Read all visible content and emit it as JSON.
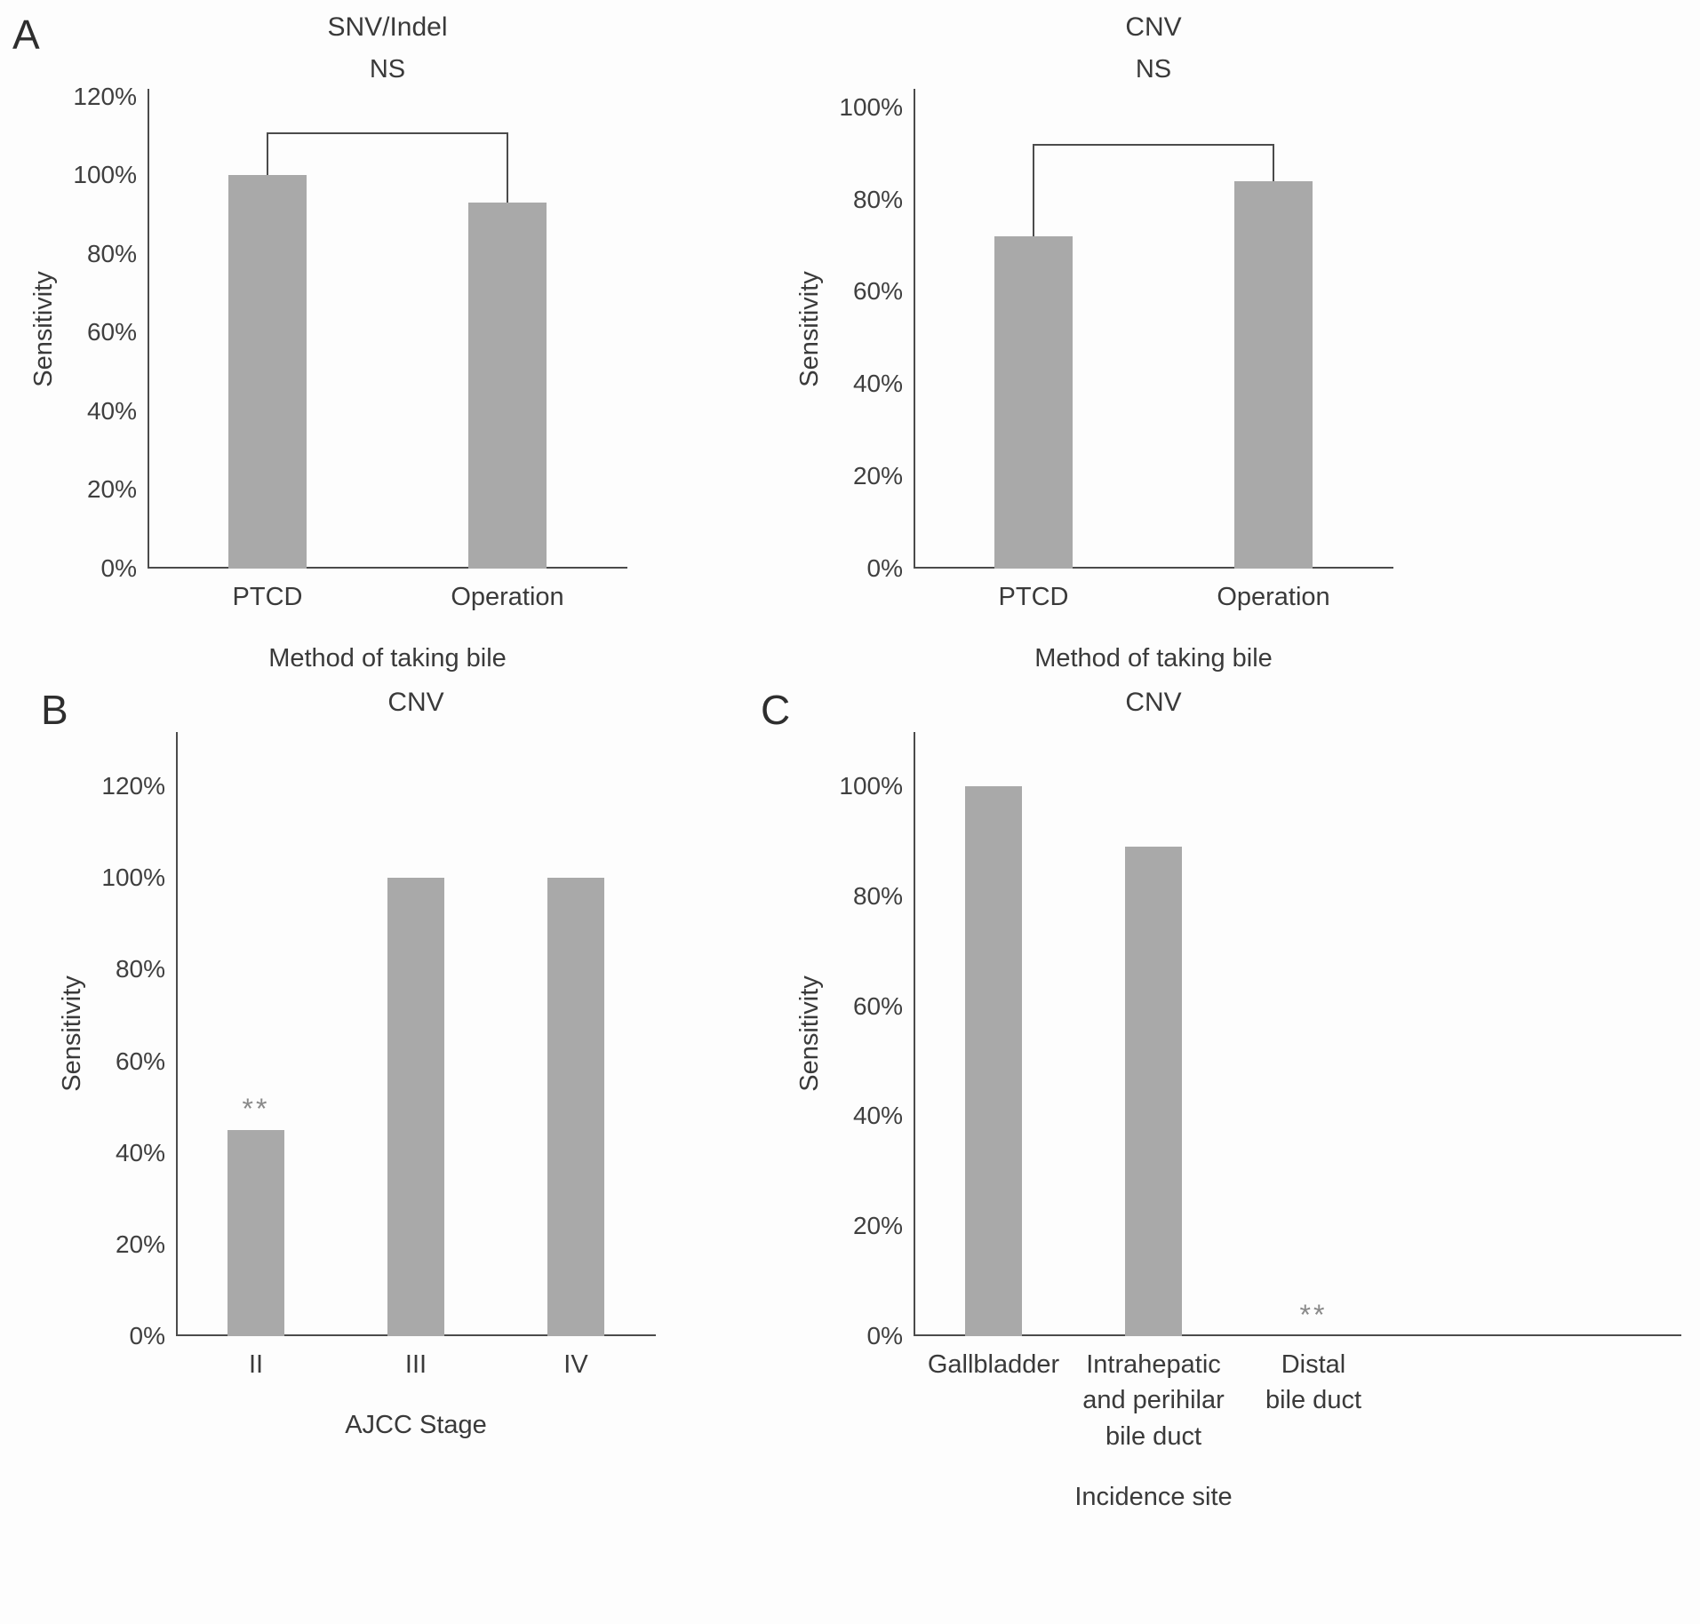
{
  "page": {
    "background": "#fdfdfd",
    "panel_labels": {
      "a": "A",
      "b": "B",
      "c": "C"
    }
  },
  "colors": {
    "bar": "#a9a9a9",
    "axis": "#4b4b4b",
    "text": "#3d3d3d",
    "significance": "#8a8a8a"
  },
  "chart_data": [
    {
      "type": "bar",
      "panel": "A",
      "title": "SNV/Indel",
      "categories": [
        "PTCD",
        "Operation"
      ],
      "values": [
        100,
        93
      ],
      "value_unit": "%",
      "xlabel": "Method of taking bile",
      "ylabel": "Sensitivity",
      "ylim": [
        0,
        120
      ],
      "ytick_values": [
        0,
        20,
        40,
        60,
        80,
        100,
        120
      ],
      "yticks": [
        "0%",
        "20%",
        "40%",
        "60%",
        "80%",
        "100%",
        "120%"
      ],
      "bracket": {
        "from": 0,
        "to": 1,
        "label": "NS",
        "y": 111
      },
      "grid": false,
      "legend": false,
      "ydraw_max": 122
    },
    {
      "type": "bar",
      "panel": "A",
      "title": "CNV",
      "categories": [
        "PTCD",
        "Operation"
      ],
      "values": [
        72,
        84
      ],
      "value_unit": "%",
      "xlabel": "Method of taking bile",
      "ylabel": "Sensitivity",
      "ylim": [
        0,
        100
      ],
      "ytick_values": [
        0,
        20,
        40,
        60,
        80,
        100
      ],
      "yticks": [
        "0%",
        "20%",
        "40%",
        "60%",
        "80%",
        "100%"
      ],
      "bracket": {
        "from": 0,
        "to": 1,
        "label": "NS",
        "y": 92
      },
      "grid": false,
      "legend": false,
      "ydraw_max": 104
    },
    {
      "type": "bar",
      "panel": "B",
      "title": "CNV",
      "categories": [
        "II",
        "III",
        "IV"
      ],
      "values": [
        45,
        100,
        100
      ],
      "value_unit": "%",
      "xlabel": "AJCC Stage",
      "ylabel": "Sensitivity",
      "ylim": [
        0,
        120
      ],
      "ytick_values": [
        0,
        20,
        40,
        60,
        80,
        100,
        120
      ],
      "yticks": [
        "0%",
        "20%",
        "40%",
        "60%",
        "80%",
        "100%",
        "120%"
      ],
      "sig_markers": [
        {
          "index": 0,
          "label": "**"
        }
      ],
      "grid": false,
      "legend": false,
      "ydraw_max": 132
    },
    {
      "type": "bar",
      "panel": "C",
      "title": "CNV",
      "categories": [
        "Gallbladder",
        "Intrahepatic and perihilar bile duct",
        "Distal bile duct"
      ],
      "category_lines": [
        [
          "Gallbladder"
        ],
        [
          "Intrahepatic",
          "and perihilar",
          "bile duct"
        ],
        [
          "Distal",
          "bile duct"
        ]
      ],
      "values": [
        100,
        89,
        0
      ],
      "value_unit": "%",
      "xlabel": "Incidence site",
      "ylabel": "Sensitivity",
      "ylim": [
        0,
        100
      ],
      "ytick_values": [
        0,
        20,
        40,
        60,
        80,
        100
      ],
      "yticks": [
        "0%",
        "20%",
        "40%",
        "60%",
        "80%",
        "100%"
      ],
      "sig_markers": [
        {
          "index": 2,
          "label": "**"
        }
      ],
      "grid": false,
      "legend": false,
      "ydraw_max": 110
    }
  ]
}
